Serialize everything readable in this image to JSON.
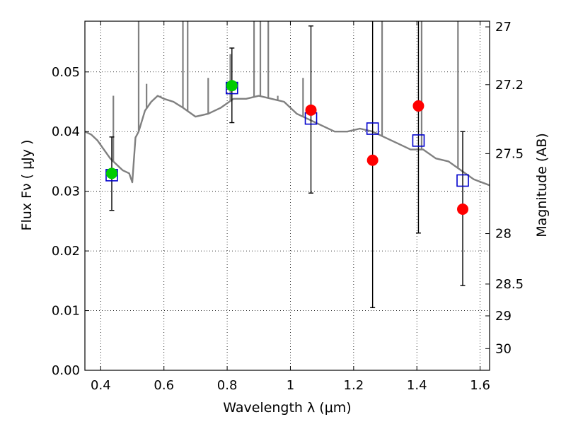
{
  "chart_data": {
    "type": "scatter",
    "xlabel": "Wavelength  λ (μm)",
    "ylabel": "Flux  Fν ( μJy )",
    "y2label": "Magnitude (AB)",
    "xlim": [
      0.35,
      1.63
    ],
    "ylim": [
      0.0,
      0.0585
    ],
    "xticks": [
      0.4,
      0.6,
      0.8,
      1.0,
      1.2,
      1.4,
      1.6
    ],
    "xtick_labels": [
      "0.4",
      "0.6",
      "0.8",
      "1",
      "1.2",
      "1.4",
      "1.6"
    ],
    "yticks": [
      0.0,
      0.01,
      0.02,
      0.03,
      0.04,
      0.05
    ],
    "ytick_labels": [
      "0.00",
      "0.01",
      "0.02",
      "0.03",
      "0.04",
      "0.05"
    ],
    "y2ticks": [
      27.0,
      27.2,
      27.5,
      28.0,
      28.5,
      29.0,
      30.0
    ],
    "y2tick_labels": [
      "27",
      "27.2",
      "27.5",
      "28",
      "28.5",
      "29",
      "30"
    ],
    "grid": true,
    "series": [
      {
        "kind": "line",
        "color": "#808080",
        "x": [
          0.35,
          0.37,
          0.39,
          0.41,
          0.43,
          0.45,
          0.47,
          0.49,
          0.5,
          0.51,
          0.52,
          0.54,
          0.56,
          0.58,
          0.6,
          0.63,
          0.66,
          0.7,
          0.74,
          0.78,
          0.82,
          0.86,
          0.9,
          0.94,
          0.98,
          1.02,
          1.06,
          1.1,
          1.14,
          1.18,
          1.22,
          1.26,
          1.3,
          1.34,
          1.38,
          1.42,
          1.46,
          1.5,
          1.54,
          1.58,
          1.63
        ],
        "y": [
          0.04,
          0.0395,
          0.0385,
          0.037,
          0.0355,
          0.0345,
          0.0335,
          0.033,
          0.0315,
          0.039,
          0.04,
          0.0435,
          0.045,
          0.046,
          0.0455,
          0.045,
          0.044,
          0.0425,
          0.043,
          0.044,
          0.0455,
          0.0455,
          0.046,
          0.0455,
          0.045,
          0.043,
          0.042,
          0.041,
          0.04,
          0.04,
          0.0405,
          0.04,
          0.039,
          0.038,
          0.037,
          0.037,
          0.0355,
          0.035,
          0.0335,
          0.032,
          0.031
        ]
      },
      {
        "kind": "emission-lines",
        "color": "#808080",
        "x": [
          0.44,
          0.52,
          0.545,
          0.59,
          0.66,
          0.675,
          0.74,
          0.81,
          0.885,
          0.905,
          0.93,
          0.96,
          1.04,
          1.29,
          1.415,
          1.53
        ],
        "y": [
          0.046,
          0.06,
          0.048,
          0.046,
          0.06,
          0.06,
          0.049,
          0.053,
          0.06,
          0.06,
          0.06,
          0.046,
          0.049,
          0.06,
          0.06,
          0.06
        ]
      },
      {
        "kind": "markers",
        "marker": "open-square",
        "color": "#0000cc",
        "x": [
          0.435,
          0.815,
          1.065,
          1.26,
          1.405,
          1.545
        ],
        "y": [
          0.0327,
          0.0473,
          0.0422,
          0.0405,
          0.0385,
          0.0318
        ]
      },
      {
        "kind": "markers",
        "marker": "circle",
        "color": "#00cc00",
        "x": [
          0.435,
          0.815
        ],
        "y": [
          0.033,
          0.0477
        ]
      },
      {
        "kind": "markers",
        "marker": "circle",
        "color": "#ff0000",
        "x": [
          1.065,
          1.26,
          1.405,
          1.545
        ],
        "y": [
          0.0436,
          0.0352,
          0.0443,
          0.027
        ]
      },
      {
        "kind": "errorbars",
        "color": "#000000",
        "x": [
          0.435,
          0.815,
          1.065,
          1.26,
          1.405,
          1.545
        ],
        "y_low": [
          0.0268,
          0.0415,
          0.0297,
          0.0105,
          0.023,
          0.0142
        ],
        "y_high": [
          0.0391,
          0.054,
          0.0577,
          0.06,
          0.06,
          0.04
        ]
      }
    ]
  }
}
